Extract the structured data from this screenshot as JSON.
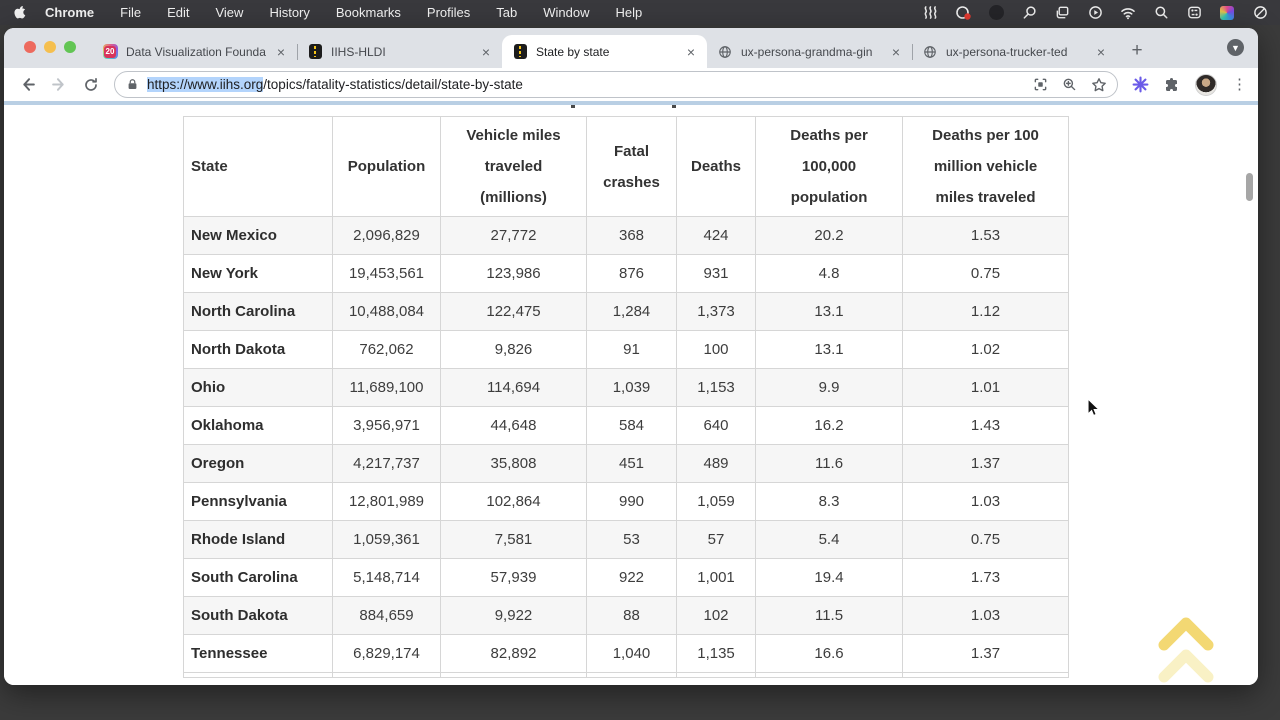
{
  "menu_bar": {
    "apple_icon": "apple-logo",
    "items": [
      "Chrome",
      "File",
      "Edit",
      "View",
      "History",
      "Bookmarks",
      "Profiles",
      "Tab",
      "Window",
      "Help"
    ],
    "status_icons": [
      "waves-icon",
      "screen-record-badge-icon",
      "dimmed-app-icon",
      "loupe-icon",
      "windows-stack-icon",
      "play-circle-icon",
      "wifi-icon",
      "spotlight-search-icon",
      "control-center-icon",
      "colorful-app-icon",
      "do-not-disturb-icon"
    ]
  },
  "tabs": [
    {
      "title": "Data Visualization Founda",
      "favicon": "course-20-icon",
      "active": false
    },
    {
      "title": "IIHS-HLDI",
      "favicon": "road-icon",
      "active": false
    },
    {
      "title": "State by state",
      "favicon": "road-icon",
      "active": true
    },
    {
      "title": "ux-persona-grandma-gin",
      "favicon": "globe-icon",
      "active": false
    },
    {
      "title": "ux-persona-trucker-ted",
      "favicon": "globe-icon",
      "active": false
    }
  ],
  "tabstrip": {
    "close_glyph": "×",
    "new_tab_glyph": "+",
    "dropdown_glyph": "▼"
  },
  "toolbar": {
    "url_selected": "https://www.iihs.org",
    "url_rest": "/topics/fatality-statistics/detail/state-by-state",
    "icons": [
      "back-icon",
      "forward-icon",
      "reload-icon",
      "lock-icon",
      "screenshot-grid-icon",
      "zoom-icon",
      "bookmark-star-icon",
      "starburst-extension-icon",
      "puzzle-extensions-icon",
      "avatar",
      "kebab-menu-icon"
    ]
  },
  "page": {
    "table": {
      "headers": [
        "State",
        "Population",
        "Vehicle miles traveled (millions)",
        "Fatal crashes",
        "Deaths",
        "Deaths per 100,000 population",
        "Deaths per 100 million vehicle miles traveled"
      ],
      "rows": [
        [
          "New Mexico",
          "2,096,829",
          "27,772",
          "368",
          "424",
          "20.2",
          "1.53"
        ],
        [
          "New York",
          "19,453,561",
          "123,986",
          "876",
          "931",
          "4.8",
          "0.75"
        ],
        [
          "North Carolina",
          "10,488,084",
          "122,475",
          "1,284",
          "1,373",
          "13.1",
          "1.12"
        ],
        [
          "North Dakota",
          "762,062",
          "9,826",
          "91",
          "100",
          "13.1",
          "1.02"
        ],
        [
          "Ohio",
          "11,689,100",
          "114,694",
          "1,039",
          "1,153",
          "9.9",
          "1.01"
        ],
        [
          "Oklahoma",
          "3,956,971",
          "44,648",
          "584",
          "640",
          "16.2",
          "1.43"
        ],
        [
          "Oregon",
          "4,217,737",
          "35,808",
          "451",
          "489",
          "11.6",
          "1.37"
        ],
        [
          "Pennsylvania",
          "12,801,989",
          "102,864",
          "990",
          "1,059",
          "8.3",
          "1.03"
        ],
        [
          "Rhode Island",
          "1,059,361",
          "7,581",
          "53",
          "57",
          "5.4",
          "0.75"
        ],
        [
          "South Carolina",
          "5,148,714",
          "57,939",
          "922",
          "1,001",
          "19.4",
          "1.73"
        ],
        [
          "South Dakota",
          "884,659",
          "9,922",
          "88",
          "102",
          "11.5",
          "1.03"
        ],
        [
          "Tennessee",
          "6,829,174",
          "82,892",
          "1,040",
          "1,135",
          "16.6",
          "1.37"
        ]
      ]
    },
    "scroll_top_icon": "double-chevron-up-icon"
  },
  "colors": {
    "menu_bar": "#39393d",
    "desktop": "#3b3b3b",
    "tab_strip": "#dee1e6",
    "selection_blue": "#b3d4fc",
    "blue_band": "#b9cfe4",
    "scroll_top_gold": "#f2d464",
    "row_stripe": "#f6f6f6",
    "traffic_red": "#ed6a5e",
    "traffic_yellow": "#f5bf4f",
    "traffic_green": "#62c554"
  }
}
